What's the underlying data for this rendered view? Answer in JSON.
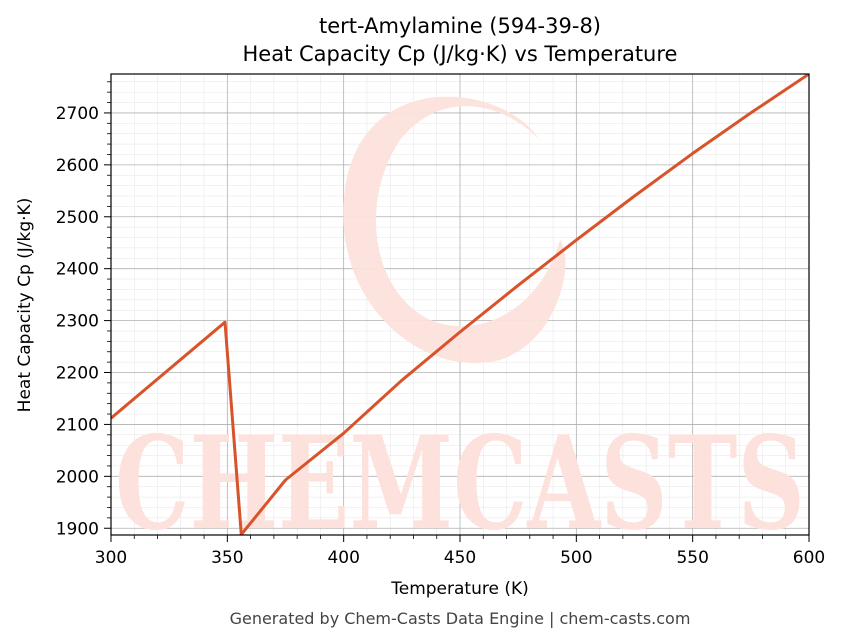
{
  "chart_data": {
    "type": "line",
    "title": "tert-Amylamine (594-39-8)",
    "subtitle": "Heat Capacity Cp (J/kg·K) vs Temperature",
    "xlabel": "Temperature (K)",
    "ylabel": "Heat Capacity Cp (J/kg·K)",
    "xlim": [
      300,
      600
    ],
    "ylim": [
      1887,
      2775
    ],
    "xticks": [
      300,
      350,
      400,
      450,
      500,
      550,
      600
    ],
    "yticks": [
      1900,
      2000,
      2100,
      2200,
      2300,
      2400,
      2500,
      2600,
      2700
    ],
    "grid": true,
    "minor_grid": true,
    "line_color": "#d9532a",
    "series": [
      {
        "x": [
          300,
          349,
          356,
          375,
          400,
          425,
          450,
          475,
          500,
          525,
          550,
          575,
          600
        ],
        "y": [
          2112,
          2297,
          1888,
          1993,
          2083,
          2185,
          2278,
          2368,
          2455,
          2540,
          2622,
          2700,
          2775
        ]
      }
    ]
  },
  "watermark": {
    "text": "CHEMCASTS",
    "color": "#fde1dc"
  },
  "footer": "Generated by Chem-Casts Data Engine | chem-casts.com"
}
